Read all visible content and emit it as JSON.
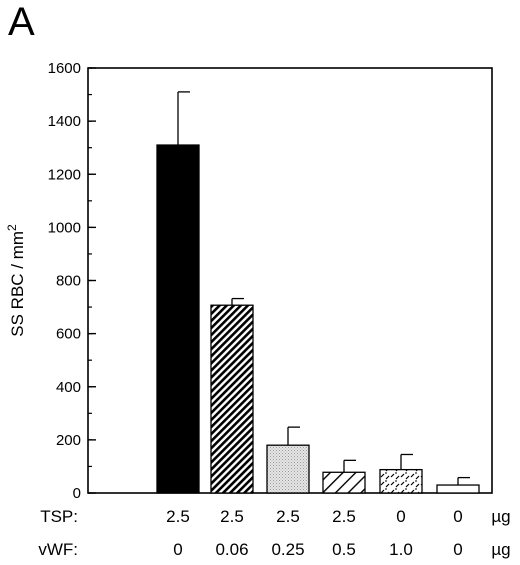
{
  "panel_label": "A",
  "chart_data": {
    "type": "bar",
    "ylabel": "SS RBC / mm",
    "ylabel_superscript": "2",
    "ylim": [
      0,
      1600
    ],
    "yticks": [
      0,
      200,
      400,
      600,
      800,
      1000,
      1200,
      1400,
      1600
    ],
    "yticks_minor_step": 100,
    "grid": false,
    "values": [
      1310,
      707,
      180,
      78,
      88,
      30
    ],
    "errors": [
      200,
      25,
      68,
      45,
      57,
      28
    ],
    "fills": [
      "solid-black",
      "dense-diagonal-hatch",
      "light-gray-stipple",
      "sparse-diagonal-hatch",
      "scattered-dash",
      "white"
    ],
    "conditions": [
      {
        "label": "TSP:",
        "values": [
          "2.5",
          "2.5",
          "2.5",
          "2.5",
          "0",
          "0"
        ],
        "unit": "µg"
      },
      {
        "label": "vWF:",
        "values": [
          "0",
          "0.06",
          "0.25",
          "0.5",
          "1.0",
          "0"
        ],
        "unit": "µg"
      }
    ]
  }
}
